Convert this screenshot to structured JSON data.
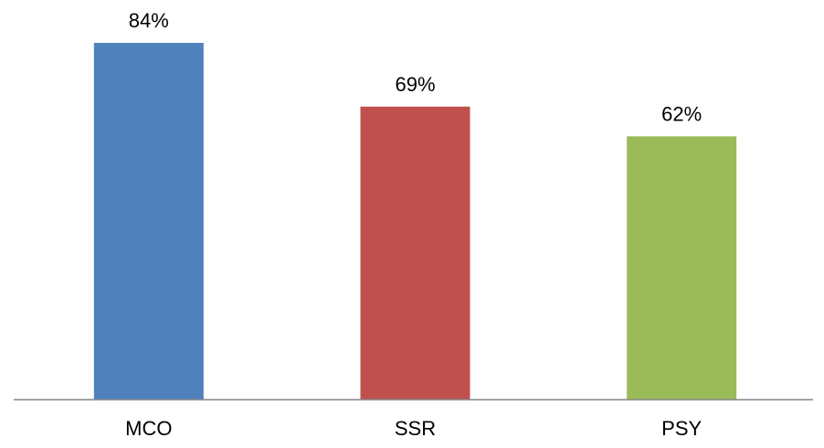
{
  "chart_data": {
    "type": "bar",
    "categories": [
      "MCO",
      "SSR",
      "PSY"
    ],
    "values": [
      84,
      69,
      62
    ],
    "value_labels": [
      "84%",
      "69%",
      "62%"
    ],
    "colors": [
      "#4f81bd",
      "#c0504d",
      "#9bbb59"
    ],
    "title": "",
    "xlabel": "",
    "ylabel": "",
    "ylim": [
      0,
      84
    ],
    "grid": false,
    "legend": "none"
  }
}
